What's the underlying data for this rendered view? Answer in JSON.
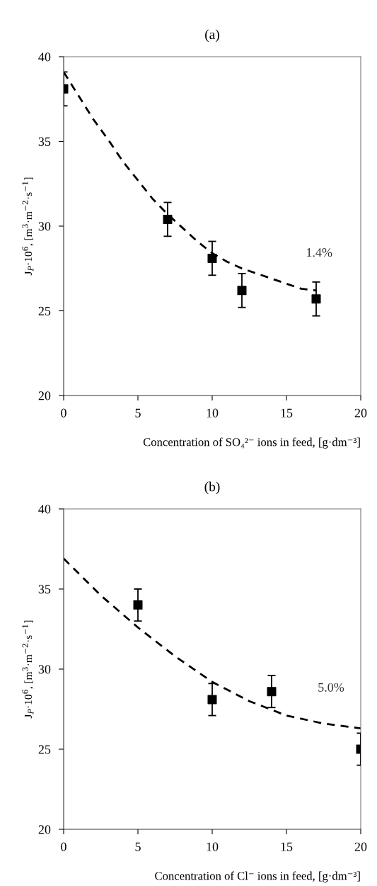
{
  "chart_data": [
    {
      "type": "scatter",
      "title": "(a)",
      "xlabel": "Concentration of SO₄²⁻ ions in feed, [g·dm⁻³]",
      "ylabel": "J$_{P}$·10$^{6}$, [m$^{3}$·m$^{−2}$·s$^{−1}$]",
      "xlim": [
        0,
        20
      ],
      "xticks": [
        0,
        5,
        10,
        15,
        20
      ],
      "ylim": [
        20,
        40
      ],
      "yticks": [
        20,
        25,
        30,
        35,
        40
      ],
      "grid": false,
      "annotations": [
        "1.4%"
      ],
      "series": [
        {
          "type": "line",
          "color": "#000000",
          "line_style": "dashed",
          "marker": "none",
          "x": [
            0,
            1,
            2,
            3,
            4,
            5,
            6,
            7,
            8,
            9,
            10,
            11,
            12,
            13,
            14,
            15,
            16,
            17
          ],
          "values": [
            39.1,
            37.7,
            36.3,
            35.1,
            33.8,
            32.7,
            31.6,
            30.7,
            29.9,
            29.1,
            28.4,
            27.9,
            27.5,
            27.2,
            26.9,
            26.6,
            26.3,
            26.2
          ]
        },
        {
          "type": "scatter",
          "color": "#000000",
          "marker": "square",
          "x": [
            0,
            7,
            10,
            12,
            17
          ],
          "values": [
            38.1,
            30.4,
            28.1,
            26.2,
            25.7
          ],
          "errors": [
            1,
            1,
            1,
            1,
            1
          ]
        }
      ]
    },
    {
      "type": "scatter",
      "title": "(b)",
      "xlabel": "Concentration of Cl⁻ ions in feed, [g·dm⁻³]",
      "ylabel": "J$_{P}$·10$^{6}$, [m$^{3}$·m$^{−2}$·s$^{−1}$]",
      "xlim": [
        0,
        20
      ],
      "xticks": [
        0,
        5,
        10,
        15,
        20
      ],
      "ylim": [
        20,
        40
      ],
      "yticks": [
        20,
        25,
        30,
        35,
        40
      ],
      "grid": false,
      "annotations": [
        "5.0%"
      ],
      "series": [
        {
          "type": "line",
          "color": "#000000",
          "line_style": "dashed",
          "marker": "none",
          "x": [
            0,
            2.5,
            5,
            7.5,
            10,
            12.5,
            15,
            17.5,
            20
          ],
          "values": [
            36.9,
            34.6,
            32.6,
            30.8,
            29.2,
            28.0,
            27.1,
            26.6,
            26.3
          ]
        },
        {
          "type": "scatter",
          "color": "#000000",
          "marker": "square",
          "x": [
            5,
            10,
            14,
            20
          ],
          "values": [
            34.0,
            28.1,
            28.6,
            25.0
          ],
          "errors": [
            1,
            1,
            1,
            1
          ]
        }
      ]
    }
  ]
}
